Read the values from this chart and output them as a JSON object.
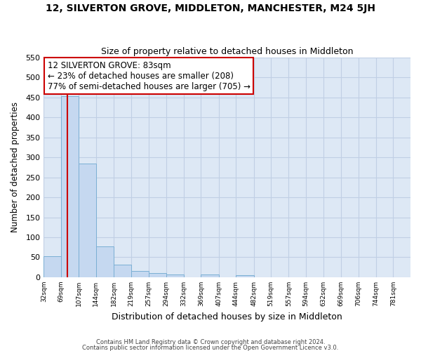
{
  "title": "12, SILVERTON GROVE, MIDDLETON, MANCHESTER, M24 5JH",
  "subtitle": "Size of property relative to detached houses in Middleton",
  "xlabel": "Distribution of detached houses by size in Middleton",
  "ylabel": "Number of detached properties",
  "bin_labels": [
    "32sqm",
    "69sqm",
    "107sqm",
    "144sqm",
    "182sqm",
    "219sqm",
    "257sqm",
    "294sqm",
    "332sqm",
    "369sqm",
    "407sqm",
    "444sqm",
    "482sqm",
    "519sqm",
    "557sqm",
    "594sqm",
    "632sqm",
    "669sqm",
    "706sqm",
    "744sqm",
    "781sqm"
  ],
  "bar_values": [
    53,
    453,
    285,
    78,
    32,
    16,
    10,
    7,
    0,
    7,
    0,
    5,
    0,
    0,
    0,
    0,
    0,
    0,
    0,
    0,
    0
  ],
  "bar_color": "#c5d8f0",
  "bar_edge_color": "#7aafd4",
  "property_line_x": 83,
  "annotation_title": "12 SILVERTON GROVE: 83sqm",
  "annotation_line1": "← 23% of detached houses are smaller (208)",
  "annotation_line2": "77% of semi-detached houses are larger (705) →",
  "vline_color": "#cc0000",
  "ylim": [
    0,
    550
  ],
  "yticks": [
    0,
    50,
    100,
    150,
    200,
    250,
    300,
    350,
    400,
    450,
    500,
    550
  ],
  "fig_bg_color": "#ffffff",
  "plot_bg_color": "#dde8f5",
  "grid_color": "#c0cfe4",
  "footer1": "Contains HM Land Registry data © Crown copyright and database right 2024.",
  "footer2": "Contains public sector information licensed under the Open Government Licence v3.0.",
  "bin_edges": [
    32,
    69,
    107,
    144,
    182,
    219,
    257,
    294,
    332,
    369,
    407,
    444,
    482,
    519,
    557,
    594,
    632,
    669,
    706,
    744,
    781,
    818
  ]
}
